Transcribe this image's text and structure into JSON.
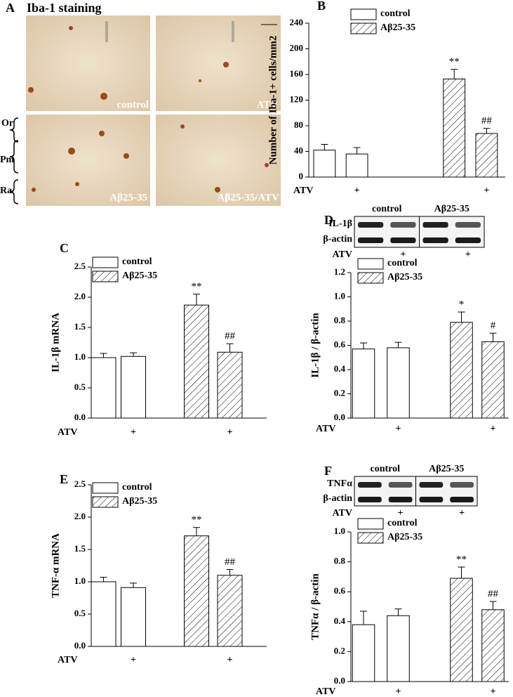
{
  "panel_a": {
    "panel": "A",
    "title": "Iba-1 staining",
    "images": [
      "control",
      "ATV",
      "Aβ25-35",
      "Aβ25-35/ATV"
    ],
    "layers": [
      "Or",
      "Pm",
      "Ra"
    ]
  },
  "chart_data": [
    {
      "type": "bar",
      "panel": "B",
      "y_label": "Number of Iba-1+ cells/mm2",
      "row_label": "ATV",
      "categories": [
        null,
        "+",
        null,
        "+"
      ],
      "ylim": [
        0,
        240
      ],
      "yticks": [
        0,
        40,
        80,
        120,
        160,
        200,
        240
      ],
      "series": [
        {
          "name": "control",
          "color": "#ffffff",
          "hatch": false,
          "values": [
            42,
            36,
            null,
            null
          ],
          "errors": [
            9,
            10,
            null,
            null
          ],
          "annotations": [
            null,
            null,
            null,
            null
          ]
        },
        {
          "name": "Aβ25-35",
          "color": "#ffffff",
          "hatch": true,
          "values": [
            null,
            null,
            153,
            68
          ],
          "errors": [
            null,
            null,
            15,
            8
          ],
          "annotations": [
            null,
            null,
            "**",
            "##"
          ]
        }
      ]
    },
    {
      "type": "bar",
      "panel": "C",
      "y_label": "IL-1β mRNA",
      "row_label": "ATV",
      "categories": [
        null,
        "+",
        null,
        "+"
      ],
      "ylim": [
        0,
        2.5
      ],
      "yticks": [
        {
          "value": 0,
          "label": "0.0"
        },
        0.5,
        {
          "value": 1,
          "label": "1.0"
        },
        1.5,
        {
          "value": 2,
          "label": "2.0"
        },
        2.5
      ],
      "series": [
        {
          "name": "control",
          "color": "#ffffff",
          "hatch": false,
          "values": [
            1.0,
            1.02,
            null,
            null
          ],
          "errors": [
            0.07,
            0.06,
            null,
            null
          ],
          "annotations": [
            null,
            null,
            null,
            null
          ]
        },
        {
          "name": "Aβ25-35",
          "color": "#ffffff",
          "hatch": true,
          "values": [
            null,
            null,
            1.87,
            1.09
          ],
          "errors": [
            null,
            null,
            0.18,
            0.14
          ],
          "annotations": [
            null,
            null,
            "**",
            "##"
          ]
        }
      ]
    },
    {
      "type": "bar",
      "panel": "D",
      "y_label": "IL-1β / β-actin",
      "row_label": "ATV",
      "categories": [
        null,
        "+",
        null,
        "+"
      ],
      "ylim": [
        0,
        1.2
      ],
      "yticks": [
        {
          "value": 0,
          "label": "0.0"
        },
        0.2,
        0.4,
        0.6,
        0.8,
        {
          "value": 1,
          "label": "1.0"
        },
        1.2
      ],
      "blot": {
        "header": [
          "control",
          "Aβ25-35"
        ],
        "rows": [
          "IL-1β",
          "β-actin"
        ],
        "row_label": "ATV",
        "marks": [
          "+",
          "+"
        ]
      },
      "series": [
        {
          "name": "control",
          "color": "#ffffff",
          "hatch": false,
          "values": [
            0.57,
            0.58,
            null,
            null
          ],
          "errors": [
            0.05,
            0.045,
            null,
            null
          ],
          "annotations": [
            null,
            null,
            null,
            null
          ]
        },
        {
          "name": "Aβ25-35",
          "color": "#ffffff",
          "hatch": true,
          "values": [
            null,
            null,
            0.79,
            0.63
          ],
          "errors": [
            null,
            null,
            0.085,
            0.07
          ],
          "annotations": [
            null,
            null,
            "*",
            "#"
          ]
        }
      ]
    },
    {
      "type": "bar",
      "panel": "E",
      "y_label": "TNF-α mRNA",
      "row_label": "ATV",
      "categories": [
        null,
        "+",
        null,
        "+"
      ],
      "ylim": [
        0,
        2.5
      ],
      "yticks": [
        {
          "value": 0,
          "label": "0.0"
        },
        0.5,
        {
          "value": 1,
          "label": "1.0"
        },
        1.5,
        {
          "value": 2,
          "label": "2.0"
        },
        2.5
      ],
      "series": [
        {
          "name": "control",
          "color": "#ffffff",
          "hatch": false,
          "values": [
            1.0,
            0.91,
            null,
            null
          ],
          "errors": [
            0.07,
            0.07,
            null,
            null
          ],
          "annotations": [
            null,
            null,
            null,
            null
          ]
        },
        {
          "name": "Aβ25-35",
          "color": "#ffffff",
          "hatch": true,
          "values": [
            null,
            null,
            1.71,
            1.1
          ],
          "errors": [
            null,
            null,
            0.13,
            0.09
          ],
          "annotations": [
            null,
            null,
            "**",
            "##"
          ]
        }
      ]
    },
    {
      "type": "bar",
      "panel": "F",
      "y_label": "TNFα / β-actin",
      "row_label": "ATV",
      "categories": [
        null,
        "+",
        null,
        "+"
      ],
      "ylim": [
        0,
        1.0
      ],
      "yticks": [
        {
          "value": 0,
          "label": "0.0"
        },
        0.2,
        0.4,
        0.6,
        0.8,
        {
          "value": 1,
          "label": "1.0"
        }
      ],
      "blot": {
        "header": [
          "control",
          "Aβ25-35"
        ],
        "rows": [
          "TNFα",
          "β-actin"
        ],
        "row_label": "ATV",
        "marks": [
          "+",
          "+"
        ]
      },
      "series": [
        {
          "name": "control",
          "color": "#ffffff",
          "hatch": false,
          "values": [
            0.38,
            0.44,
            null,
            null
          ],
          "errors": [
            0.09,
            0.045,
            null,
            null
          ],
          "annotations": [
            null,
            null,
            null,
            null
          ]
        },
        {
          "name": "Aβ25-35",
          "color": "#ffffff",
          "hatch": true,
          "values": [
            null,
            null,
            0.69,
            0.48
          ],
          "errors": [
            null,
            null,
            0.075,
            0.055
          ],
          "annotations": [
            null,
            null,
            "**",
            "##"
          ]
        }
      ]
    }
  ]
}
